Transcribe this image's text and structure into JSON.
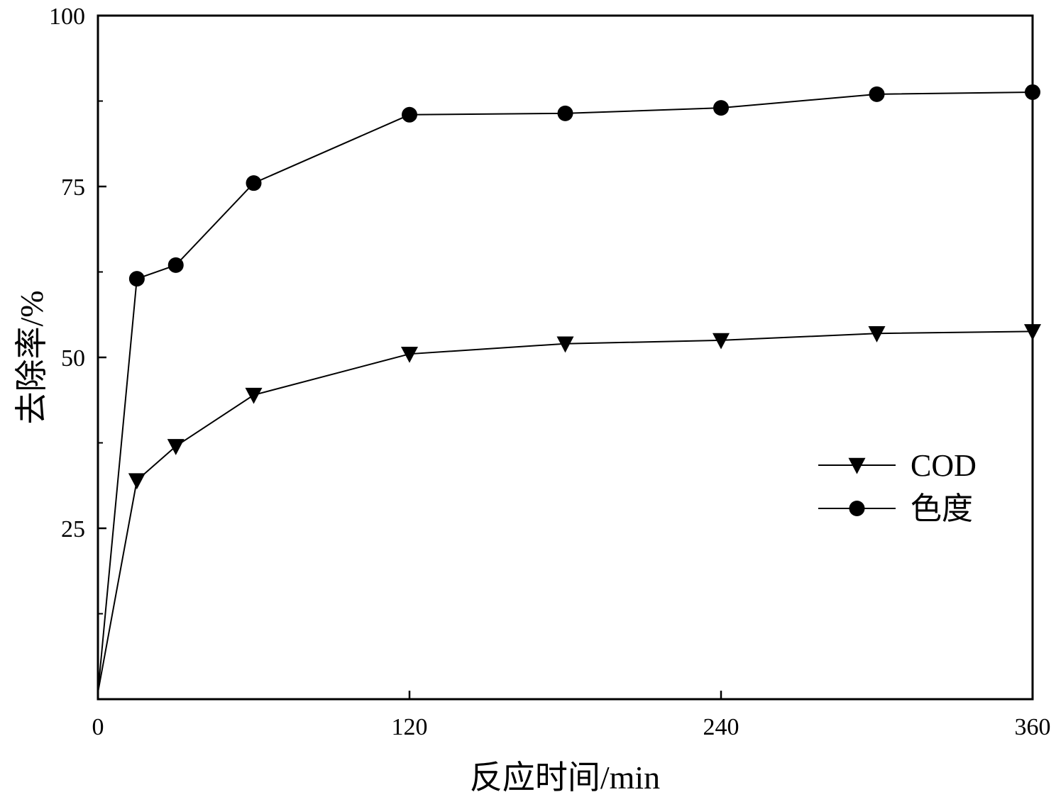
{
  "chart_data": {
    "type": "line",
    "title": "",
    "xlabel": "反应时间/min",
    "ylabel": "去除率/%",
    "xlim": [
      0,
      360
    ],
    "ylim": [
      0,
      100
    ],
    "x_ticks": [
      0,
      120,
      240,
      360
    ],
    "x_tick_labels": [
      "0",
      "120",
      "240",
      "360"
    ],
    "y_ticks": [
      0,
      25,
      50,
      75,
      100
    ],
    "y_tick_labels": [
      "",
      "25",
      "50",
      "75",
      "100"
    ],
    "y_minor_ticks": [
      12.5,
      37.5,
      62.5,
      87.5
    ],
    "grid": false,
    "legend_position": "right-middle",
    "series": [
      {
        "name": "COD",
        "marker": "triangle-down",
        "color": "#000000",
        "x": [
          0,
          15,
          30,
          60,
          120,
          180,
          240,
          300,
          360
        ],
        "y": [
          1,
          32,
          37,
          44.5,
          50.5,
          52,
          52.5,
          53.5,
          53.8
        ]
      },
      {
        "name": "色度",
        "marker": "circle",
        "color": "#000000",
        "x": [
          0,
          15,
          30,
          60,
          120,
          180,
          240,
          300,
          360
        ],
        "y": [
          1,
          61.5,
          63.5,
          75.5,
          85.5,
          85.7,
          86.5,
          88.5,
          88.8
        ]
      }
    ]
  }
}
